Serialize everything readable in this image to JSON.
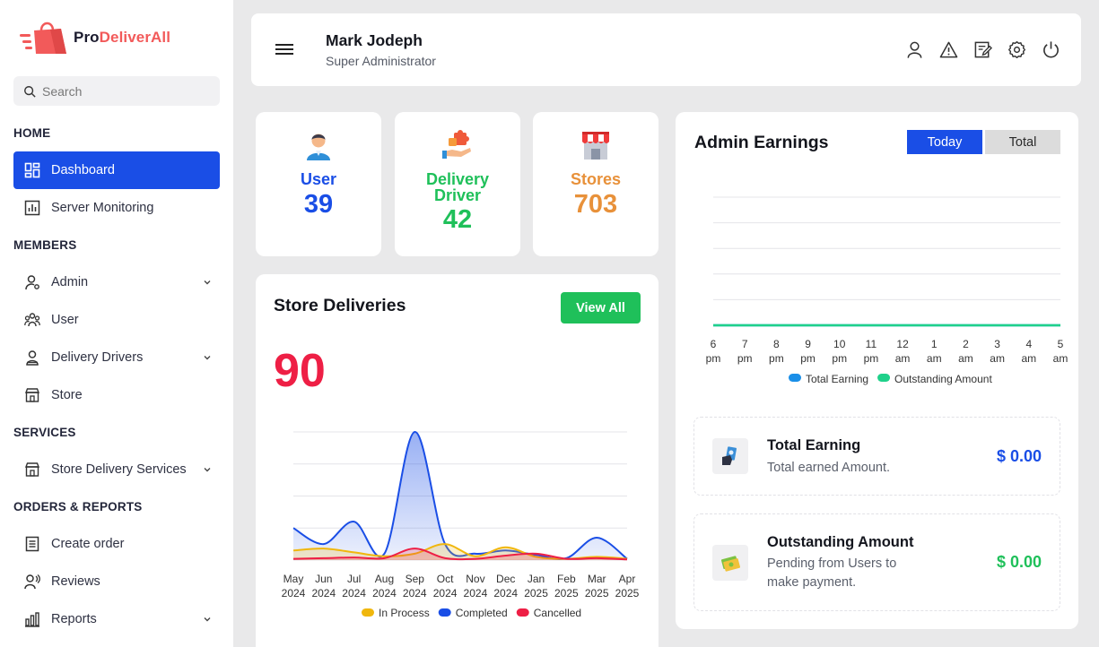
{
  "brand": {
    "name_part1": "Pro",
    "name_part2": "DeliverAll",
    "colors": {
      "accent": "#1a4ee6",
      "brand": "#f25a5a",
      "green": "#1fc05a",
      "red": "#ee1f45",
      "orange": "#e8913a"
    }
  },
  "search": {
    "placeholder": "Search"
  },
  "sidebar": {
    "sections": [
      "HOME",
      "MEMBERS",
      "SERVICES",
      "ORDERS & REPORTS"
    ],
    "items": [
      {
        "label": "Dashboard",
        "icon": "dashboard-icon",
        "active": true
      },
      {
        "label": "Server Monitoring",
        "icon": "chart-icon"
      },
      {
        "label": "Admin",
        "icon": "admin-icon",
        "has_submenu": true
      },
      {
        "label": "User",
        "icon": "users-icon"
      },
      {
        "label": "Delivery Drivers",
        "icon": "driver-icon",
        "has_submenu": true
      },
      {
        "label": "Store",
        "icon": "store-icon"
      },
      {
        "label": "Store Delivery Services",
        "icon": "store-icon",
        "has_submenu": true
      },
      {
        "label": "Create order",
        "icon": "document-icon"
      },
      {
        "label": "Reviews",
        "icon": "reviews-icon"
      },
      {
        "label": "Reports",
        "icon": "bar-chart-icon",
        "has_submenu": true
      }
    ]
  },
  "header": {
    "user_name": "Mark Jodeph",
    "user_role": "Super Administrator",
    "icons": [
      "user-icon",
      "warning-icon",
      "edit-icon",
      "settings-icon",
      "power-icon"
    ]
  },
  "stats": [
    {
      "label": "User",
      "value": "39",
      "color": "#1a4ee6"
    },
    {
      "label_line1": "Delivery",
      "label_line2": "Driver",
      "value": "42",
      "color": "#1fc05a"
    },
    {
      "label": "Stores",
      "value": "703",
      "color": "#e8913a"
    }
  ],
  "store_deliveries": {
    "title": "Store Deliveries",
    "view_all_label": "View All",
    "total": "90"
  },
  "admin_earnings": {
    "title": "Admin Earnings",
    "toggle_today": "Today",
    "toggle_total": "Total",
    "total_earning": {
      "title": "Total Earning",
      "subtitle": "Total earned Amount.",
      "amount": "$ 0.00"
    },
    "outstanding": {
      "title": "Outstanding Amount",
      "subtitle": "Pending from Users to make payment.",
      "amount": "$ 0.00"
    }
  },
  "chart_data": [
    {
      "type": "area",
      "title": "Store Deliveries",
      "categories": [
        "May 2024",
        "Jun 2024",
        "Jul 2024",
        "Aug 2024",
        "Sep 2024",
        "Oct 2024",
        "Nov 2024",
        "Dec 2024",
        "Jan 2025",
        "Feb 2025",
        "Mar 2025",
        "Apr 2025"
      ],
      "category_lines": [
        [
          "May",
          "2024"
        ],
        [
          "Jun",
          "2024"
        ],
        [
          "Jul",
          "2024"
        ],
        [
          "Aug",
          "2024"
        ],
        [
          "Sep",
          "2024"
        ],
        [
          "Oct",
          "2024"
        ],
        [
          "Nov",
          "2024"
        ],
        [
          "Dec",
          "2024"
        ],
        [
          "Jan",
          "2025"
        ],
        [
          "Feb",
          "2025"
        ],
        [
          "Mar",
          "2025"
        ],
        [
          "Apr",
          "2025"
        ]
      ],
      "series": [
        {
          "name": "In Process",
          "color": "#f0b70d",
          "values": [
            1.5,
            1.8,
            1.2,
            0.6,
            1.0,
            2.5,
            0.6,
            2.0,
            0.5,
            0.2,
            0.5,
            0.2
          ]
        },
        {
          "name": "Completed",
          "color": "#1a4ee6",
          "values": [
            5.0,
            2.5,
            6.0,
            1.0,
            20.0,
            2.5,
            1.0,
            1.5,
            0.8,
            0.3,
            3.5,
            0.2
          ]
        },
        {
          "name": "Cancelled",
          "color": "#ee1f45",
          "values": [
            0.2,
            0.3,
            0.4,
            0.3,
            1.8,
            0.3,
            0.2,
            0.7,
            1.0,
            0.2,
            0.3,
            0.1
          ]
        }
      ],
      "ylim": [
        0,
        20
      ],
      "grid": true,
      "legend": "bottom"
    },
    {
      "type": "line",
      "title": "Admin Earnings",
      "categories": [
        "6 pm",
        "7 pm",
        "8 pm",
        "9 pm",
        "10 pm",
        "11 pm",
        "12 am",
        "1 am",
        "2 am",
        "3 am",
        "4 am",
        "5 am"
      ],
      "category_lines": [
        [
          "6",
          "pm"
        ],
        [
          "7",
          "pm"
        ],
        [
          "8",
          "pm"
        ],
        [
          "9",
          "pm"
        ],
        [
          "10",
          "pm"
        ],
        [
          "11",
          "pm"
        ],
        [
          "12",
          "am"
        ],
        [
          "1",
          "am"
        ],
        [
          "2",
          "am"
        ],
        [
          "3",
          "am"
        ],
        [
          "4",
          "am"
        ],
        [
          "5",
          "am"
        ]
      ],
      "series": [
        {
          "name": "Total Earning",
          "color": "#1a8fe8",
          "values": [
            0,
            0,
            0,
            0,
            0,
            0,
            0,
            0,
            0,
            0,
            0,
            0
          ]
        },
        {
          "name": "Outstanding Amount",
          "color": "#1fd18a",
          "values": [
            0,
            0,
            0,
            0,
            0,
            0,
            0,
            0,
            0,
            0,
            0,
            0
          ]
        }
      ],
      "ylim": [
        0,
        5
      ],
      "grid": true,
      "legend": "bottom"
    }
  ]
}
